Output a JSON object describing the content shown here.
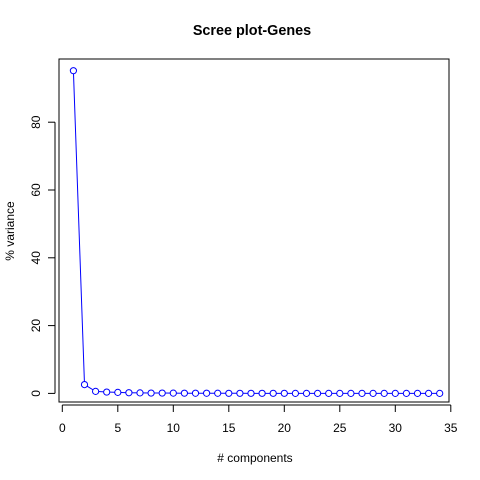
{
  "chart_data": {
    "type": "line",
    "title": "Scree plot-Genes",
    "xlabel": "# components",
    "ylabel": "% variance",
    "xlim": [
      0,
      35
    ],
    "ylim": [
      0,
      97
    ],
    "xticks": [
      0,
      5,
      10,
      15,
      20,
      25,
      30,
      35
    ],
    "xtick_labels": [
      "0",
      "5",
      "10",
      "15",
      "20",
      "25",
      "30",
      "35"
    ],
    "yticks": [
      0,
      20,
      40,
      60,
      80
    ],
    "ytick_labels": [
      "0",
      "20",
      "40",
      "60",
      "80"
    ],
    "grid": false,
    "legend": "none",
    "series": [
      {
        "marker": "open-circle",
        "color": "#0000ff",
        "x": [
          1,
          2,
          3,
          4,
          5,
          6,
          7,
          8,
          9,
          10,
          11,
          12,
          13,
          14,
          15,
          16,
          17,
          18,
          19,
          20,
          21,
          22,
          23,
          24,
          25,
          26,
          27,
          28,
          29,
          30,
          31,
          32,
          33,
          34
        ],
        "y": [
          95.2,
          2.6,
          0.6,
          0.4,
          0.3,
          0.2,
          0.15,
          0.1,
          0.1,
          0.08,
          0.06,
          0.05,
          0.05,
          0.04,
          0.03,
          0.03,
          0.02,
          0.02,
          0.02,
          0.02,
          0.01,
          0.01,
          0.01,
          0.01,
          0.01,
          0.01,
          0.01,
          0.01,
          0.01,
          0.01,
          0.01,
          0.01,
          0.01,
          0.01
        ]
      }
    ]
  }
}
